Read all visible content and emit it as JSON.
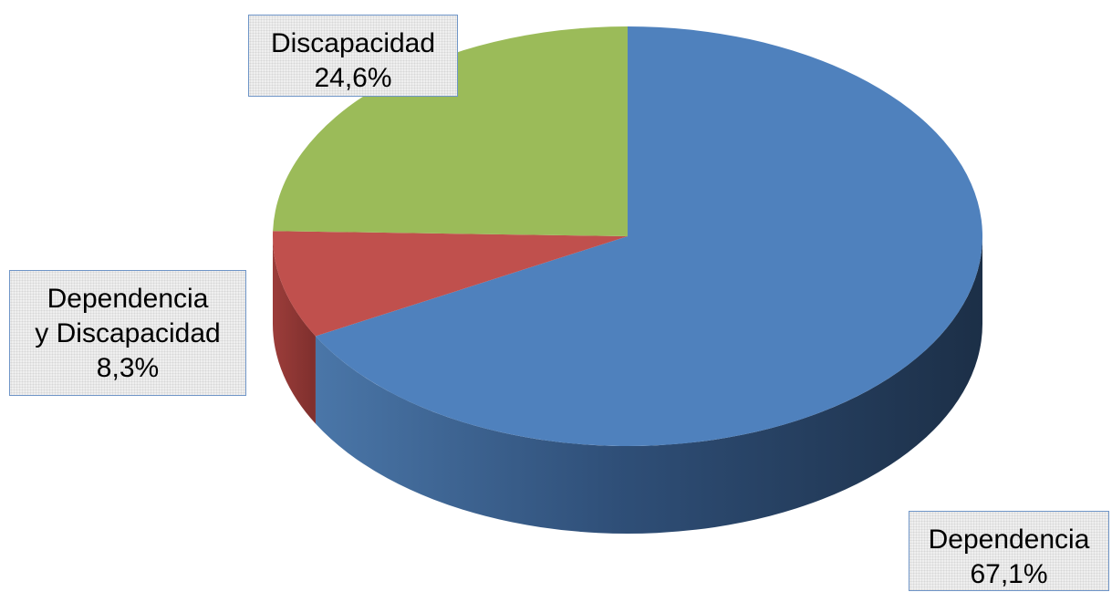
{
  "chart_data": {
    "type": "pie",
    "title": "",
    "slices": [
      {
        "name": "Dependencia",
        "value": 67.1,
        "label_name": "Dependencia",
        "label_value": "67,1%",
        "color": "#4f81bd"
      },
      {
        "name": "Dependencia y Discapacidad",
        "value": 8.3,
        "label_name_line1": "Dependencia",
        "label_name_line2": "y Discapacidad",
        "label_value": "8,3%",
        "color": "#c0504d"
      },
      {
        "name": "Discapacidad",
        "value": 24.6,
        "label_name": "Discapacidad",
        "label_value": "24,6%",
        "color": "#9bbb59"
      }
    ],
    "legend": "none",
    "style": "3d"
  }
}
